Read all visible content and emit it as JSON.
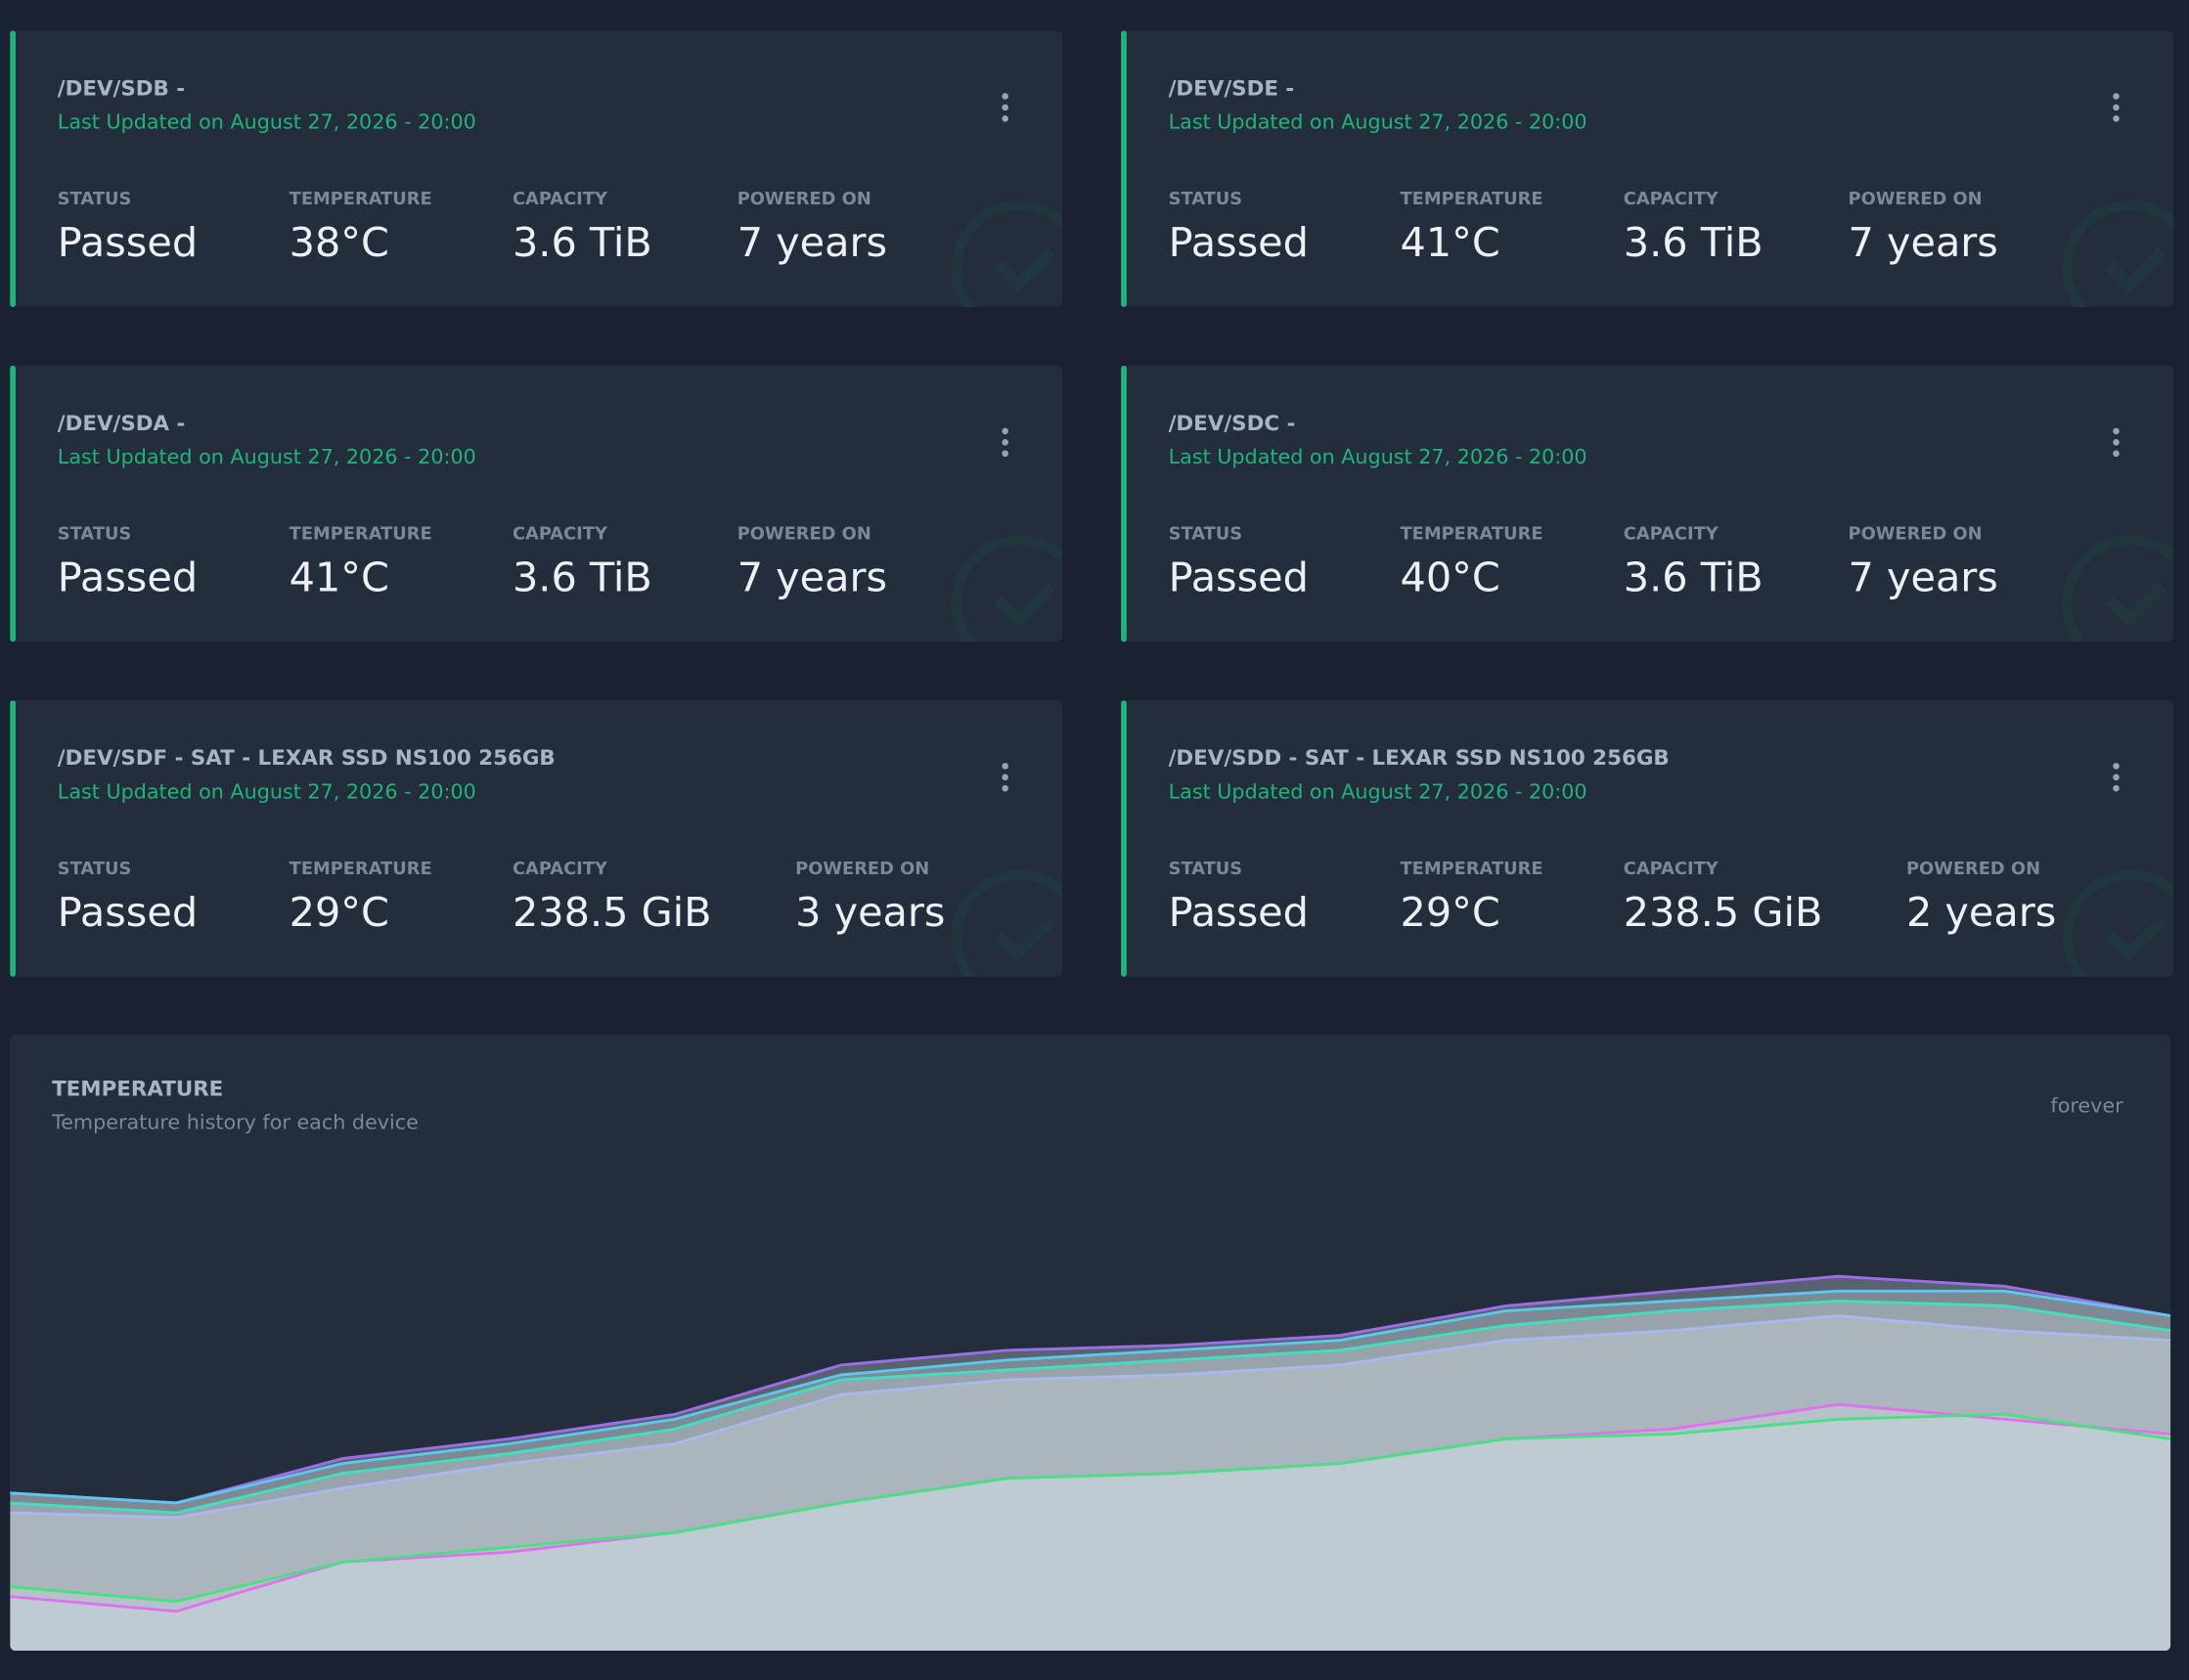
{
  "cards": [
    {
      "title": "/DEV/SDB -",
      "updated": "Last Updated on August 27, 2026 - 20:00",
      "stats": [
        {
          "label": "STATUS",
          "value": "Passed"
        },
        {
          "label": "TEMPERATURE",
          "value": "38°C"
        },
        {
          "label": "CAPACITY",
          "value": "3.6 TiB"
        },
        {
          "label": "POWERED ON",
          "value": "7 years"
        }
      ]
    },
    {
      "title": "/DEV/SDE -",
      "updated": "Last Updated on August 27, 2026 - 20:00",
      "stats": [
        {
          "label": "STATUS",
          "value": "Passed"
        },
        {
          "label": "TEMPERATURE",
          "value": "41°C"
        },
        {
          "label": "CAPACITY",
          "value": "3.6 TiB"
        },
        {
          "label": "POWERED ON",
          "value": "7 years"
        }
      ]
    },
    {
      "title": "/DEV/SDA -",
      "updated": "Last Updated on August 27, 2026 - 20:00",
      "stats": [
        {
          "label": "STATUS",
          "value": "Passed"
        },
        {
          "label": "TEMPERATURE",
          "value": "41°C"
        },
        {
          "label": "CAPACITY",
          "value": "3.6 TiB"
        },
        {
          "label": "POWERED ON",
          "value": "7 years"
        }
      ]
    },
    {
      "title": "/DEV/SDC -",
      "updated": "Last Updated on August 27, 2026 - 20:00",
      "stats": [
        {
          "label": "STATUS",
          "value": "Passed"
        },
        {
          "label": "TEMPERATURE",
          "value": "40°C"
        },
        {
          "label": "CAPACITY",
          "value": "3.6 TiB"
        },
        {
          "label": "POWERED ON",
          "value": "7 years"
        }
      ]
    },
    {
      "title": "/DEV/SDF - SAT - LEXAR SSD NS100 256GB",
      "updated": "Last Updated on August 27, 2026 - 20:00",
      "stats": [
        {
          "label": "STATUS",
          "value": "Passed"
        },
        {
          "label": "TEMPERATURE",
          "value": "29°C"
        },
        {
          "label": "CAPACITY",
          "value": "238.5 GiB"
        },
        {
          "label": "POWERED ON",
          "value": "3 years"
        }
      ]
    },
    {
      "title": "/DEV/SDD - SAT - LEXAR SSD NS100 256GB",
      "updated": "Last Updated on August 27, 2026 - 20:00",
      "stats": [
        {
          "label": "STATUS",
          "value": "Passed"
        },
        {
          "label": "TEMPERATURE",
          "value": "29°C"
        },
        {
          "label": "CAPACITY",
          "value": "238.5 GiB"
        },
        {
          "label": "POWERED ON",
          "value": "2 years"
        }
      ]
    }
  ],
  "chart_data": {
    "type": "area",
    "title": "TEMPERATURE",
    "subtitle": "Temperature history for each device",
    "range": "forever",
    "categories": [
      null,
      null,
      null,
      null,
      null,
      null,
      null,
      null,
      null,
      null,
      null,
      null,
      null,
      null
    ],
    "ylim": [
      7,
      57
    ],
    "series": [
      {
        "color": "#9d6ee8",
        "values": [
          23,
          22,
          26.5,
          28.5,
          31,
          36,
          37.5,
          38,
          39,
          42,
          43.5,
          45,
          44,
          41
        ]
      },
      {
        "color": "#5cc8f0",
        "values": [
          23,
          22,
          26,
          28,
          30.5,
          35,
          36.5,
          37.5,
          38.5,
          41.5,
          42.5,
          43.5,
          43.5,
          41
        ]
      },
      {
        "color": "#3fe0c0",
        "values": [
          22,
          21,
          25,
          27,
          29.5,
          34.5,
          35.5,
          36.5,
          37.5,
          40,
          41.5,
          42.5,
          42,
          39.5
        ]
      },
      {
        "color": "#a9b8f0",
        "values": [
          21,
          20.5,
          23.5,
          26,
          28,
          33,
          34.5,
          35,
          36,
          38.5,
          39.5,
          41,
          39.5,
          38.5
        ]
      },
      {
        "color": "#e070f0",
        "values": [
          12.5,
          11,
          16,
          17,
          19,
          22,
          24.5,
          25,
          26,
          28.5,
          29.5,
          32,
          30.5,
          29
        ]
      },
      {
        "color": "#48e080",
        "values": [
          13.5,
          12,
          16,
          17.5,
          19,
          22,
          24.5,
          25,
          26,
          28.5,
          29,
          30.5,
          31,
          28.5
        ]
      }
    ]
  }
}
